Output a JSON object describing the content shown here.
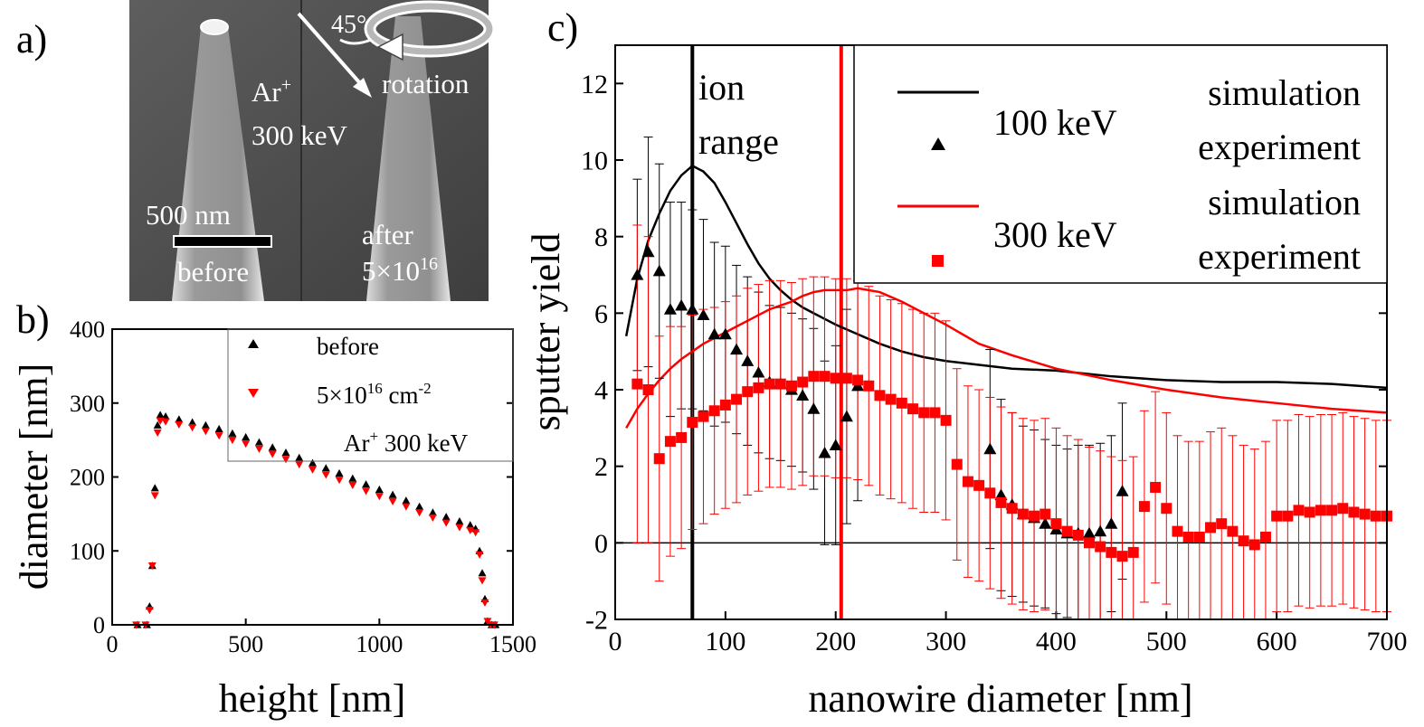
{
  "panel_a": {
    "panel_label": "a)",
    "beam_angle": "45°",
    "rotation_label": "rotation",
    "ion": "Ar",
    "ion_charge": "+",
    "ion_energy": "300 keV",
    "scale_label": "500 nm",
    "before_label": "before",
    "after_label": "after",
    "fluence_base": "5×10",
    "fluence_exp": "16"
  },
  "chart_data": [
    {
      "panel_label": "b)",
      "type": "scatter",
      "xlabel": "height [nm]",
      "ylabel": "diameter [nm]",
      "xlim": [
        0,
        1500
      ],
      "ylim": [
        0,
        400
      ],
      "xticks": [
        "0",
        "500",
        "1000",
        "1500"
      ],
      "yticks": [
        "0",
        "100",
        "200",
        "300",
        "400"
      ],
      "legend_position": "top-right",
      "legend_note_prefix": "Ar",
      "legend_note_sup": "+",
      "legend_note_suffix": " 300 keV",
      "series": [
        {
          "name": "before",
          "color": "#000000",
          "marker": "triangle-up",
          "x": [
            95,
            130,
            140,
            150,
            160,
            170,
            180,
            200,
            250,
            300,
            350,
            400,
            450,
            500,
            550,
            600,
            650,
            700,
            750,
            800,
            850,
            900,
            950,
            1000,
            1050,
            1100,
            1150,
            1200,
            1250,
            1300,
            1340,
            1360,
            1375,
            1385,
            1395,
            1405,
            1420,
            1435
          ],
          "y": [
            0,
            0,
            25,
            80,
            185,
            270,
            284,
            282,
            278,
            274,
            270,
            265,
            259,
            254,
            247,
            240,
            233,
            226,
            219,
            212,
            205,
            198,
            190,
            183,
            176,
            168,
            160,
            152,
            146,
            140,
            135,
            130,
            100,
            70,
            35,
            5,
            0,
            0
          ]
        },
        {
          "name": "5×10",
          "name_sup": "16",
          "name_suffix": " cm",
          "name_suffix_sup": "-2",
          "color": "#ff0000",
          "marker": "triangle-down",
          "x": [
            90,
            125,
            140,
            150,
            160,
            170,
            180,
            200,
            250,
            300,
            350,
            400,
            450,
            500,
            550,
            600,
            650,
            700,
            750,
            800,
            850,
            900,
            950,
            1000,
            1050,
            1100,
            1150,
            1200,
            1250,
            1300,
            1340,
            1360,
            1375,
            1385,
            1395,
            1405,
            1415,
            1430
          ],
          "y": [
            0,
            0,
            20,
            80,
            175,
            260,
            276,
            275,
            271,
            267,
            262,
            256,
            250,
            245,
            238,
            231,
            224,
            217,
            210,
            203,
            196,
            189,
            181,
            174,
            167,
            160,
            152,
            145,
            138,
            132,
            128,
            125,
            95,
            60,
            30,
            5,
            0,
            0
          ]
        }
      ]
    },
    {
      "panel_label": "c)",
      "type": "scatter",
      "xlabel": "nanowire diameter [nm]",
      "ylabel": "sputter yield",
      "xlim": [
        0,
        700
      ],
      "ylim": [
        -2,
        13
      ],
      "xticks": [
        "0",
        "100",
        "200",
        "300",
        "400",
        "500",
        "600",
        "700"
      ],
      "yticks": [
        "-2",
        "0",
        "2",
        "4",
        "6",
        "8",
        "10",
        "12"
      ],
      "legend_position": "top-right",
      "legend_groups": [
        {
          "energy": "100 keV",
          "line_label": "simulation",
          "marker_label": "experiment",
          "color": "#000000"
        },
        {
          "energy": "300 keV",
          "line_label": "simulation",
          "marker_label": "experiment",
          "color": "#ff0000"
        }
      ],
      "annotation": [
        "ion",
        "range"
      ],
      "ion_range_lines": [
        {
          "x": 70,
          "color": "#000000"
        },
        {
          "x": 205,
          "color": "#ff0000"
        }
      ],
      "zero_line": 0,
      "series": [
        {
          "name": "100 keV simulation",
          "kind": "line",
          "color": "#000000",
          "x": [
            10,
            20,
            30,
            40,
            50,
            60,
            70,
            80,
            90,
            100,
            110,
            120,
            130,
            140,
            150,
            160,
            170,
            180,
            190,
            200,
            220,
            240,
            260,
            280,
            300,
            330,
            360,
            400,
            450,
            500,
            550,
            600,
            650,
            700
          ],
          "y": [
            5.4,
            6.9,
            7.9,
            8.6,
            9.2,
            9.6,
            9.85,
            9.7,
            9.4,
            8.9,
            8.35,
            7.8,
            7.3,
            6.9,
            6.6,
            6.35,
            6.15,
            6.0,
            5.85,
            5.7,
            5.45,
            5.2,
            5.0,
            4.85,
            4.75,
            4.65,
            4.55,
            4.5,
            4.35,
            4.25,
            4.2,
            4.2,
            4.15,
            4.05
          ]
        },
        {
          "name": "300 keV simulation",
          "kind": "line",
          "color": "#ff0000",
          "x": [
            10,
            20,
            30,
            40,
            50,
            60,
            70,
            80,
            90,
            100,
            110,
            120,
            130,
            140,
            150,
            160,
            170,
            180,
            190,
            200,
            210,
            220,
            240,
            260,
            280,
            300,
            330,
            360,
            400,
            450,
            500,
            550,
            600,
            650,
            700
          ],
          "y": [
            3.0,
            3.5,
            3.9,
            4.25,
            4.55,
            4.8,
            5.0,
            5.2,
            5.35,
            5.5,
            5.65,
            5.8,
            5.95,
            6.1,
            6.2,
            6.3,
            6.45,
            6.55,
            6.6,
            6.6,
            6.6,
            6.65,
            6.55,
            6.3,
            6.0,
            5.7,
            5.2,
            4.9,
            4.55,
            4.25,
            4.0,
            3.8,
            3.65,
            3.5,
            3.4
          ]
        },
        {
          "name": "100 keV experiment",
          "kind": "markers",
          "marker": "triangle-up",
          "color": "#000000",
          "x": [
            20,
            30,
            40,
            50,
            60,
            70,
            80,
            90,
            100,
            110,
            120,
            130,
            140,
            150,
            160,
            170,
            180,
            190,
            200,
            210,
            220,
            340,
            350,
            360,
            370,
            380,
            390,
            400,
            410,
            420,
            430,
            440,
            450,
            460
          ],
          "y": [
            7.0,
            7.6,
            7.1,
            6.1,
            6.2,
            6.1,
            5.95,
            5.45,
            5.45,
            5.05,
            4.75,
            4.45,
            4.2,
            4.15,
            4.0,
            3.85,
            3.5,
            2.35,
            2.55,
            3.3,
            4.1,
            2.45,
            1.25,
            1.0,
            0.75,
            0.65,
            0.5,
            0.35,
            0.25,
            0.25,
            0.25,
            0.3,
            0.5,
            1.35
          ],
          "err": [
            2.5,
            3.0,
            2.8,
            2.8,
            2.7,
            2.6,
            2.5,
            2.4,
            2.3,
            2.2,
            2.2,
            2.1,
            2.0,
            2.0,
            2.0,
            2.0,
            2.1,
            2.4,
            2.6,
            2.8,
            3.0,
            2.6,
            2.5,
            2.4,
            2.3,
            2.3,
            2.2,
            2.2,
            2.2,
            2.3,
            2.3,
            2.3,
            2.3,
            2.3
          ]
        },
        {
          "name": "300 keV experiment",
          "kind": "markers",
          "marker": "square",
          "color": "#ff0000",
          "x": [
            20,
            30,
            40,
            50,
            60,
            70,
            80,
            90,
            100,
            110,
            120,
            130,
            140,
            150,
            160,
            170,
            180,
            190,
            200,
            210,
            220,
            230,
            240,
            250,
            260,
            270,
            280,
            290,
            300,
            310,
            320,
            330,
            340,
            350,
            360,
            370,
            380,
            390,
            400,
            410,
            420,
            430,
            440,
            450,
            460,
            470,
            480,
            490,
            500,
            510,
            520,
            530,
            540,
            550,
            560,
            570,
            580,
            590,
            600,
            610,
            620,
            630,
            640,
            650,
            660,
            670,
            680,
            690,
            700
          ],
          "y": [
            4.15,
            4.0,
            2.2,
            2.65,
            2.75,
            3.15,
            3.3,
            3.45,
            3.6,
            3.75,
            3.95,
            4.05,
            4.15,
            4.15,
            4.1,
            4.2,
            4.35,
            4.35,
            4.3,
            4.3,
            4.25,
            4.1,
            3.85,
            3.75,
            3.65,
            3.5,
            3.4,
            3.4,
            3.2,
            2.05,
            1.6,
            1.5,
            1.3,
            1.05,
            0.9,
            0.75,
            0.7,
            0.75,
            0.5,
            0.3,
            0.2,
            0.0,
            -0.1,
            -0.25,
            -0.35,
            -0.25,
            0.95,
            1.45,
            0.9,
            0.3,
            0.15,
            0.15,
            0.4,
            0.5,
            0.3,
            0.05,
            -0.05,
            0.15,
            0.7,
            0.7,
            0.85,
            0.8,
            0.85,
            0.85,
            0.9,
            0.8,
            0.75,
            0.7,
            0.7
          ],
          "err": [
            4.15,
            4.0,
            3.2,
            3.0,
            2.9,
            2.8,
            2.8,
            2.7,
            2.7,
            2.7,
            2.7,
            2.7,
            2.7,
            2.7,
            2.7,
            2.7,
            2.6,
            2.6,
            2.6,
            2.6,
            2.6,
            2.6,
            2.6,
            2.6,
            2.6,
            2.6,
            2.6,
            2.6,
            2.6,
            2.5,
            2.5,
            2.5,
            2.5,
            2.5,
            2.5,
            2.5,
            2.5,
            2.5,
            2.5,
            2.5,
            2.5,
            2.5,
            2.5,
            2.5,
            2.5,
            2.5,
            2.5,
            2.5,
            2.5,
            2.5,
            2.5,
            2.5,
            2.5,
            2.5,
            2.5,
            2.5,
            2.5,
            2.5,
            2.5,
            2.5,
            2.5,
            2.5,
            2.5,
            2.5,
            2.5,
            2.5,
            2.5,
            2.5,
            2.5
          ]
        }
      ]
    }
  ]
}
